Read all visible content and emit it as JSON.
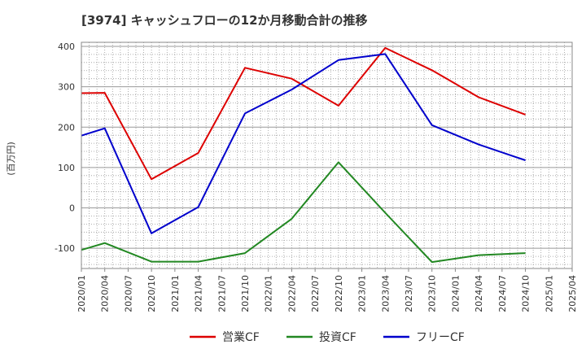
{
  "chart_data": {
    "type": "line",
    "title": "[3974]  キャッシュフローの12か月移動合計の推移",
    "ylabel": "(百万円)",
    "xlabel": "",
    "ylim": [
      -150,
      410
    ],
    "yticks": [
      400,
      300,
      200,
      100,
      0,
      -100
    ],
    "grid": true,
    "legend_position": "bottom",
    "x": [
      "2020/01",
      "2020/04",
      "2020/07",
      "2020/10",
      "2021/01",
      "2021/04",
      "2021/07",
      "2021/10",
      "2022/01",
      "2022/04",
      "2022/07",
      "2022/10",
      "2023/01",
      "2023/04",
      "2023/07",
      "2023/10",
      "2024/01",
      "2024/04",
      "2024/07",
      "2024/10",
      "2025/01",
      "2025/04"
    ],
    "series": [
      {
        "name": "営業CF",
        "color": "#dd0000",
        "points": [
          [
            "2020/01",
            284
          ],
          [
            "2020/04",
            285
          ],
          [
            "2020/10",
            71
          ],
          [
            "2021/04",
            136
          ],
          [
            "2021/10",
            347
          ],
          [
            "2022/04",
            320
          ],
          [
            "2022/10",
            253
          ],
          [
            "2023/04",
            396
          ],
          [
            "2023/10",
            341
          ],
          [
            "2024/04",
            274
          ],
          [
            "2024/10",
            231
          ]
        ]
      },
      {
        "name": "投資CF",
        "color": "#228822",
        "points": [
          [
            "2020/01",
            -104
          ],
          [
            "2020/04",
            -87
          ],
          [
            "2020/10",
            -133
          ],
          [
            "2021/04",
            -133
          ],
          [
            "2021/10",
            -112
          ],
          [
            "2022/04",
            -27
          ],
          [
            "2022/10",
            113
          ],
          [
            "2023/04",
            -12
          ],
          [
            "2023/10",
            -134
          ],
          [
            "2024/04",
            -117
          ],
          [
            "2024/10",
            -112
          ]
        ]
      },
      {
        "name": "フリーCF",
        "color": "#0000cc",
        "points": [
          [
            "2020/01",
            179
          ],
          [
            "2020/04",
            197
          ],
          [
            "2020/10",
            -63
          ],
          [
            "2021/04",
            2
          ],
          [
            "2021/10",
            234
          ],
          [
            "2022/04",
            293
          ],
          [
            "2022/10",
            366
          ],
          [
            "2023/04",
            381
          ],
          [
            "2023/10",
            205
          ],
          [
            "2024/04",
            157
          ],
          [
            "2024/10",
            118
          ]
        ]
      }
    ]
  }
}
